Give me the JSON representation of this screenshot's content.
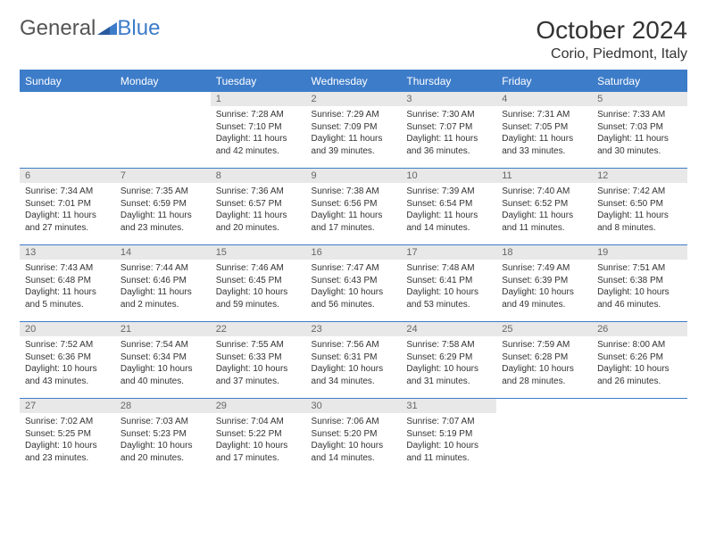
{
  "logo": {
    "text1": "General",
    "text2": "Blue"
  },
  "title": "October 2024",
  "location": "Corio, Piedmont, Italy",
  "colors": {
    "header_bg": "#3d7cc9",
    "header_text": "#ffffff",
    "daynum_bg": "#e8e8e8",
    "daynum_text": "#666666",
    "body_text": "#333333",
    "border": "#3d7cc9"
  },
  "weekdays": [
    "Sunday",
    "Monday",
    "Tuesday",
    "Wednesday",
    "Thursday",
    "Friday",
    "Saturday"
  ],
  "weeks": [
    [
      {
        "empty": true
      },
      {
        "empty": true
      },
      {
        "num": "1",
        "sunrise": "Sunrise: 7:28 AM",
        "sunset": "Sunset: 7:10 PM",
        "daylight": "Daylight: 11 hours and 42 minutes."
      },
      {
        "num": "2",
        "sunrise": "Sunrise: 7:29 AM",
        "sunset": "Sunset: 7:09 PM",
        "daylight": "Daylight: 11 hours and 39 minutes."
      },
      {
        "num": "3",
        "sunrise": "Sunrise: 7:30 AM",
        "sunset": "Sunset: 7:07 PM",
        "daylight": "Daylight: 11 hours and 36 minutes."
      },
      {
        "num": "4",
        "sunrise": "Sunrise: 7:31 AM",
        "sunset": "Sunset: 7:05 PM",
        "daylight": "Daylight: 11 hours and 33 minutes."
      },
      {
        "num": "5",
        "sunrise": "Sunrise: 7:33 AM",
        "sunset": "Sunset: 7:03 PM",
        "daylight": "Daylight: 11 hours and 30 minutes."
      }
    ],
    [
      {
        "num": "6",
        "sunrise": "Sunrise: 7:34 AM",
        "sunset": "Sunset: 7:01 PM",
        "daylight": "Daylight: 11 hours and 27 minutes."
      },
      {
        "num": "7",
        "sunrise": "Sunrise: 7:35 AM",
        "sunset": "Sunset: 6:59 PM",
        "daylight": "Daylight: 11 hours and 23 minutes."
      },
      {
        "num": "8",
        "sunrise": "Sunrise: 7:36 AM",
        "sunset": "Sunset: 6:57 PM",
        "daylight": "Daylight: 11 hours and 20 minutes."
      },
      {
        "num": "9",
        "sunrise": "Sunrise: 7:38 AM",
        "sunset": "Sunset: 6:56 PM",
        "daylight": "Daylight: 11 hours and 17 minutes."
      },
      {
        "num": "10",
        "sunrise": "Sunrise: 7:39 AM",
        "sunset": "Sunset: 6:54 PM",
        "daylight": "Daylight: 11 hours and 14 minutes."
      },
      {
        "num": "11",
        "sunrise": "Sunrise: 7:40 AM",
        "sunset": "Sunset: 6:52 PM",
        "daylight": "Daylight: 11 hours and 11 minutes."
      },
      {
        "num": "12",
        "sunrise": "Sunrise: 7:42 AM",
        "sunset": "Sunset: 6:50 PM",
        "daylight": "Daylight: 11 hours and 8 minutes."
      }
    ],
    [
      {
        "num": "13",
        "sunrise": "Sunrise: 7:43 AM",
        "sunset": "Sunset: 6:48 PM",
        "daylight": "Daylight: 11 hours and 5 minutes."
      },
      {
        "num": "14",
        "sunrise": "Sunrise: 7:44 AM",
        "sunset": "Sunset: 6:46 PM",
        "daylight": "Daylight: 11 hours and 2 minutes."
      },
      {
        "num": "15",
        "sunrise": "Sunrise: 7:46 AM",
        "sunset": "Sunset: 6:45 PM",
        "daylight": "Daylight: 10 hours and 59 minutes."
      },
      {
        "num": "16",
        "sunrise": "Sunrise: 7:47 AM",
        "sunset": "Sunset: 6:43 PM",
        "daylight": "Daylight: 10 hours and 56 minutes."
      },
      {
        "num": "17",
        "sunrise": "Sunrise: 7:48 AM",
        "sunset": "Sunset: 6:41 PM",
        "daylight": "Daylight: 10 hours and 53 minutes."
      },
      {
        "num": "18",
        "sunrise": "Sunrise: 7:49 AM",
        "sunset": "Sunset: 6:39 PM",
        "daylight": "Daylight: 10 hours and 49 minutes."
      },
      {
        "num": "19",
        "sunrise": "Sunrise: 7:51 AM",
        "sunset": "Sunset: 6:38 PM",
        "daylight": "Daylight: 10 hours and 46 minutes."
      }
    ],
    [
      {
        "num": "20",
        "sunrise": "Sunrise: 7:52 AM",
        "sunset": "Sunset: 6:36 PM",
        "daylight": "Daylight: 10 hours and 43 minutes."
      },
      {
        "num": "21",
        "sunrise": "Sunrise: 7:54 AM",
        "sunset": "Sunset: 6:34 PM",
        "daylight": "Daylight: 10 hours and 40 minutes."
      },
      {
        "num": "22",
        "sunrise": "Sunrise: 7:55 AM",
        "sunset": "Sunset: 6:33 PM",
        "daylight": "Daylight: 10 hours and 37 minutes."
      },
      {
        "num": "23",
        "sunrise": "Sunrise: 7:56 AM",
        "sunset": "Sunset: 6:31 PM",
        "daylight": "Daylight: 10 hours and 34 minutes."
      },
      {
        "num": "24",
        "sunrise": "Sunrise: 7:58 AM",
        "sunset": "Sunset: 6:29 PM",
        "daylight": "Daylight: 10 hours and 31 minutes."
      },
      {
        "num": "25",
        "sunrise": "Sunrise: 7:59 AM",
        "sunset": "Sunset: 6:28 PM",
        "daylight": "Daylight: 10 hours and 28 minutes."
      },
      {
        "num": "26",
        "sunrise": "Sunrise: 8:00 AM",
        "sunset": "Sunset: 6:26 PM",
        "daylight": "Daylight: 10 hours and 26 minutes."
      }
    ],
    [
      {
        "num": "27",
        "sunrise": "Sunrise: 7:02 AM",
        "sunset": "Sunset: 5:25 PM",
        "daylight": "Daylight: 10 hours and 23 minutes."
      },
      {
        "num": "28",
        "sunrise": "Sunrise: 7:03 AM",
        "sunset": "Sunset: 5:23 PM",
        "daylight": "Daylight: 10 hours and 20 minutes."
      },
      {
        "num": "29",
        "sunrise": "Sunrise: 7:04 AM",
        "sunset": "Sunset: 5:22 PM",
        "daylight": "Daylight: 10 hours and 17 minutes."
      },
      {
        "num": "30",
        "sunrise": "Sunrise: 7:06 AM",
        "sunset": "Sunset: 5:20 PM",
        "daylight": "Daylight: 10 hours and 14 minutes."
      },
      {
        "num": "31",
        "sunrise": "Sunrise: 7:07 AM",
        "sunset": "Sunset: 5:19 PM",
        "daylight": "Daylight: 10 hours and 11 minutes."
      },
      {
        "empty": true
      },
      {
        "empty": true
      }
    ]
  ]
}
